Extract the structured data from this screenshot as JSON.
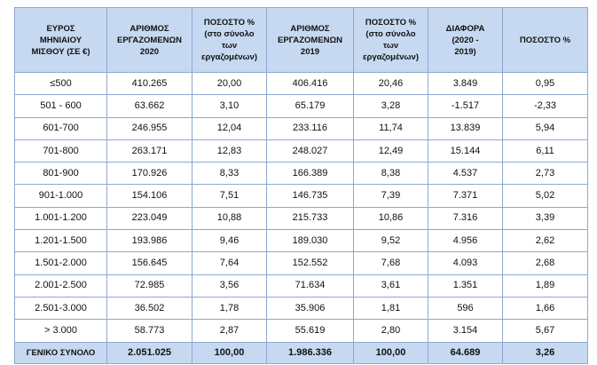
{
  "table": {
    "headers": [
      {
        "lines": [
          "ΕΥΡΟΣ",
          "ΜΗΝΙΑΙΟΥ",
          "ΜΙΣΘΟΥ (ΣΕ €)"
        ]
      },
      {
        "lines": [
          "ΑΡΙΘΜΟΣ",
          "ΕΡΓΑΖΟΜΕΝΩΝ",
          "2020"
        ]
      },
      {
        "lines": [
          "ΠΟΣΟΣΤΟ %",
          "(στο σύνολο",
          "των",
          "εργαζομένων)"
        ]
      },
      {
        "lines": [
          "ΑΡΙΘΜΟΣ",
          "ΕΡΓΑΖΟΜΕΝΩΝ",
          "2019"
        ]
      },
      {
        "lines": [
          "ΠΟΣΟΣΤΟ %",
          "(στο σύνολο",
          "των",
          "εργαζομένων)"
        ]
      },
      {
        "lines": [
          "ΔΙΑΦΟΡΑ",
          "(2020 -",
          "2019)"
        ]
      },
      {
        "lines": [
          "ΠΟΣΟΣΤΟ %"
        ]
      }
    ],
    "rows": [
      [
        "≤500",
        "410.265",
        "20,00",
        "406.416",
        "20,46",
        "3.849",
        "0,95"
      ],
      [
        "501 - 600",
        "63.662",
        "3,10",
        "65.179",
        "3,28",
        "-1.517",
        "-2,33"
      ],
      [
        "601-700",
        "246.955",
        "12,04",
        "233.116",
        "11,74",
        "13.839",
        "5,94"
      ],
      [
        "701-800",
        "263.171",
        "12,83",
        "248.027",
        "12,49",
        "15.144",
        "6,11"
      ],
      [
        "801-900",
        "170.926",
        "8,33",
        "166.389",
        "8,38",
        "4.537",
        "2,73"
      ],
      [
        "901-1.000",
        "154.106",
        "7,51",
        "146.735",
        "7,39",
        "7.371",
        "5,02"
      ],
      [
        "1.001-1.200",
        "223.049",
        "10,88",
        "215.733",
        "10,86",
        "7.316",
        "3,39"
      ],
      [
        "1.201-1.500",
        "193.986",
        "9,46",
        "189.030",
        "9,52",
        "4.956",
        "2,62"
      ],
      [
        "1.501-2.000",
        "156.645",
        "7,64",
        "152.552",
        "7,68",
        "4.093",
        "2,68"
      ],
      [
        "2.001-2.500",
        "72.985",
        "3,56",
        "71.634",
        "3,61",
        "1.351",
        "1,89"
      ],
      [
        "2.501-3.000",
        "36.502",
        "1,78",
        "35.906",
        "1,81",
        "596",
        "1,66"
      ],
      [
        "> 3.000",
        "58.773",
        "2,87",
        "55.619",
        "2,80",
        "3.154",
        "5,67"
      ]
    ],
    "total": [
      "ΓΕΝΙΚΟ ΣΥΝΟΛΟ",
      "2.051.025",
      "100,00",
      "1.986.336",
      "100,00",
      "64.689",
      "3,26"
    ],
    "colors": {
      "header_bg": "#c6d9f1",
      "border": "#8fa8cf"
    }
  }
}
